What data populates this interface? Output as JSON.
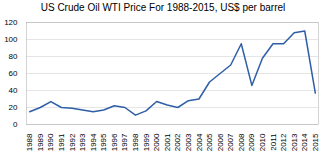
{
  "chart_data": {
    "type": "line",
    "title": "US Crude Oil WTI Price For 1988-2015, US$ per barrel",
    "x": [
      1988,
      1989,
      1990,
      1991,
      1992,
      1993,
      1994,
      1995,
      1996,
      1997,
      1998,
      1999,
      2000,
      2001,
      2002,
      2003,
      2004,
      2005,
      2006,
      2007,
      2008,
      2009,
      2010,
      2011,
      2012,
      2013,
      2014,
      2015
    ],
    "values": [
      15,
      20,
      27,
      20,
      19,
      17,
      15,
      17,
      22,
      20,
      11,
      16,
      27,
      23,
      20,
      28,
      30,
      50,
      60,
      70,
      95,
      46,
      78,
      95,
      95,
      108,
      110,
      37
    ],
    "color": "#2E5EA6",
    "xlim": [
      1987.7,
      2015.3
    ],
    "xticks": [
      1988,
      1989,
      1990,
      1991,
      1992,
      1993,
      1994,
      1995,
      1996,
      1997,
      1998,
      1999,
      2000,
      2001,
      2002,
      2003,
      2004,
      2005,
      2006,
      2007,
      2008,
      2009,
      2010,
      2011,
      2012,
      2013,
      2014,
      2015
    ],
    "ylim": [
      0,
      120
    ],
    "yticks": [
      0,
      20,
      40,
      60,
      80,
      100,
      120
    ],
    "grid": true
  }
}
